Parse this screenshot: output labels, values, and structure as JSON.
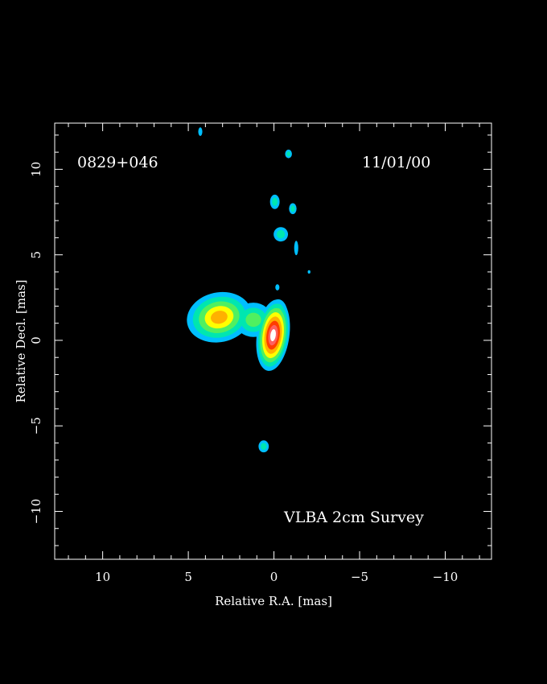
{
  "chart_data": {
    "type": "heatmap",
    "object_label": "0829+046",
    "date_label": "11/01/00",
    "survey_label": "VLBA 2cm Survey",
    "xlabel": "Relative R.A. [mas]",
    "ylabel": "Relative Decl. [mas]",
    "xlim": [
      12.8,
      -12.7
    ],
    "ylim": [
      -12.8,
      12.7
    ],
    "x_ticks": [
      10,
      5,
      0,
      -5,
      -10
    ],
    "y_ticks": [
      10,
      5,
      0,
      -5,
      -10
    ],
    "x_tick_labels": [
      "10",
      "5",
      "0",
      "−5",
      "−10"
    ],
    "y_tick_labels": [
      "10",
      "5",
      "0",
      "−5",
      "−10"
    ],
    "x_minor_step": 1,
    "y_minor_step": 1,
    "colormap": [
      "#00bfff",
      "#00e6b0",
      "#50f060",
      "#ffff00",
      "#ffb000",
      "#ff3c00",
      "#ff6060",
      "#ffffff"
    ],
    "emission": [
      {
        "x": 3.2,
        "y": 1.35,
        "rx": 1.9,
        "ry": 1.45,
        "rot": -12,
        "peak": 5
      },
      {
        "x": 1.2,
        "y": 1.2,
        "rx": 1.1,
        "ry": 1.0,
        "rot": 0,
        "peak": 3
      },
      {
        "x": 0.05,
        "y": 0.3,
        "rx": 0.95,
        "ry": 2.1,
        "rot": 8,
        "peak": 8
      },
      {
        "x": -0.25,
        "y": 1.5,
        "rx": 0.55,
        "ry": 0.9,
        "rot": 0,
        "peak": 3
      },
      {
        "x": 4.3,
        "y": 12.2,
        "rx": 0.12,
        "ry": 0.25,
        "rot": 0,
        "peak": 1
      },
      {
        "x": -0.85,
        "y": 10.9,
        "rx": 0.2,
        "ry": 0.25,
        "rot": 0,
        "peak": 2
      },
      {
        "x": -0.05,
        "y": 8.1,
        "rx": 0.28,
        "ry": 0.42,
        "rot": 0,
        "peak": 2
      },
      {
        "x": -1.1,
        "y": 7.7,
        "rx": 0.22,
        "ry": 0.32,
        "rot": 0,
        "peak": 2
      },
      {
        "x": -0.4,
        "y": 6.2,
        "rx": 0.42,
        "ry": 0.42,
        "rot": -20,
        "peak": 2
      },
      {
        "x": -1.3,
        "y": 5.4,
        "rx": 0.12,
        "ry": 0.42,
        "rot": 0,
        "peak": 1
      },
      {
        "x": -2.05,
        "y": 4.0,
        "rx": 0.08,
        "ry": 0.1,
        "rot": 0,
        "peak": 1
      },
      {
        "x": -0.2,
        "y": 3.1,
        "rx": 0.12,
        "ry": 0.18,
        "rot": 0,
        "peak": 1
      },
      {
        "x": 0.6,
        "y": -6.2,
        "rx": 0.3,
        "ry": 0.35,
        "rot": 0,
        "peak": 2
      }
    ]
  }
}
